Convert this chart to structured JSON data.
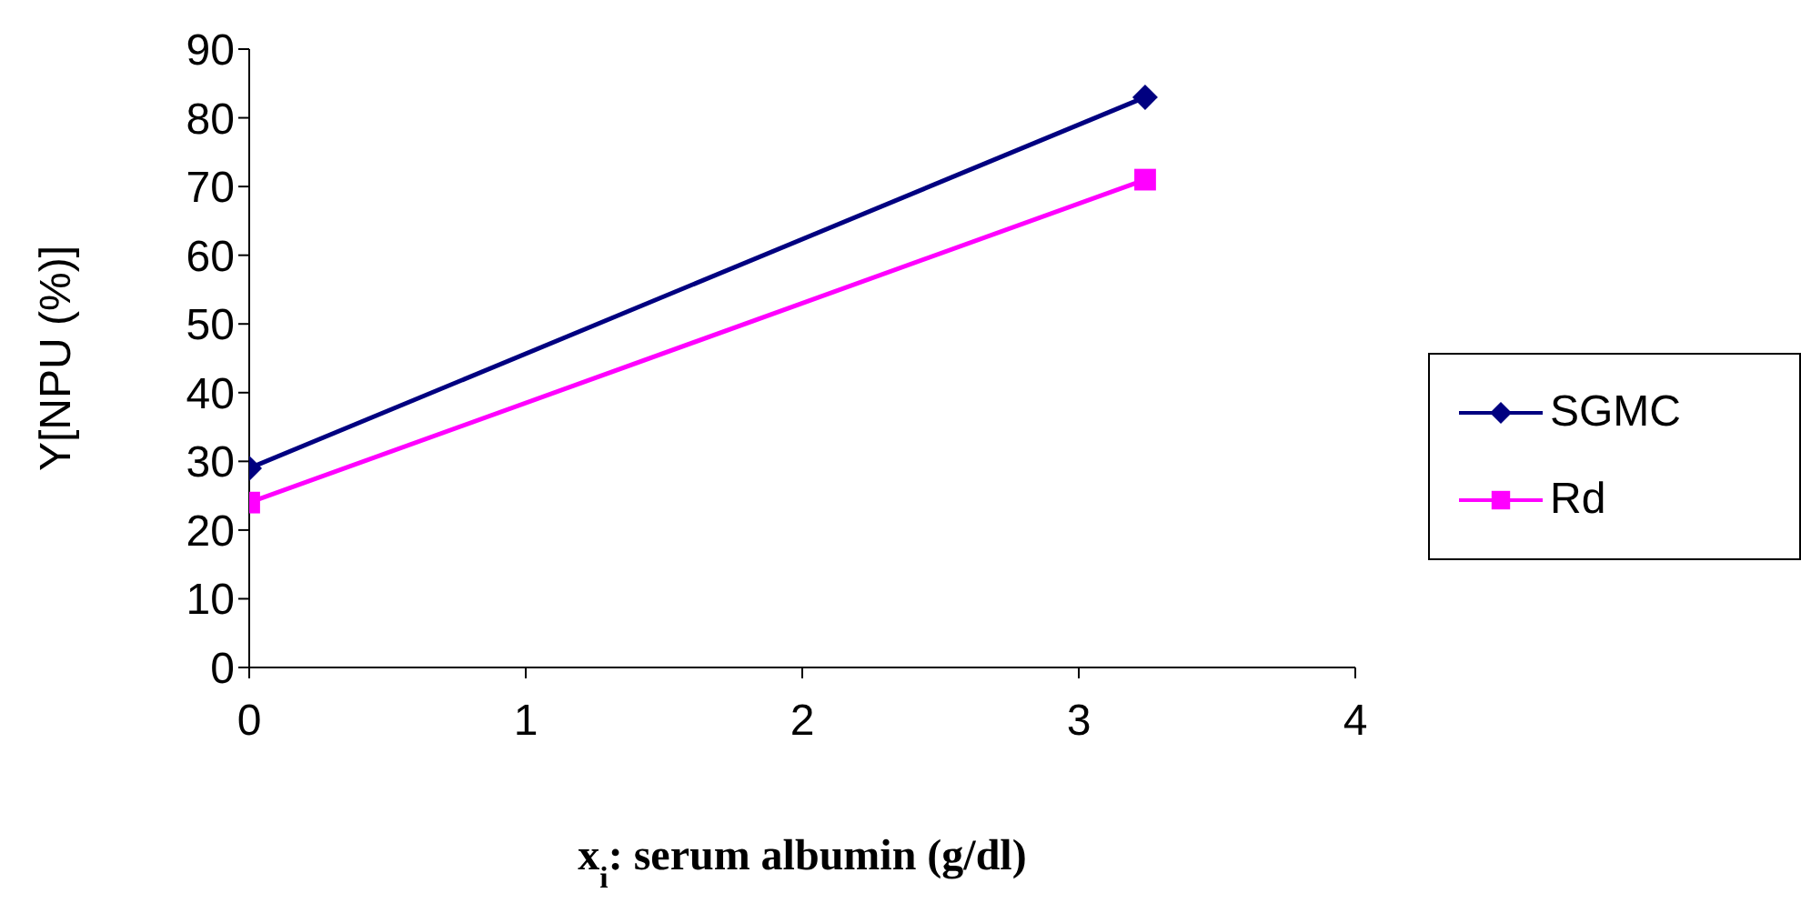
{
  "chart_data": {
    "type": "line",
    "xlabel": "x$_{i}$: serum albumin (g/dl)",
    "ylabel": "Y[NPU (%)]",
    "x": [
      0,
      3.24
    ],
    "xlim": [
      0,
      4
    ],
    "xticks": [
      0,
      1,
      2,
      3,
      4
    ],
    "ylim": [
      0,
      90
    ],
    "yticks": [
      0,
      10,
      20,
      30,
      40,
      50,
      60,
      70,
      80,
      90
    ],
    "grid": false,
    "legend": "right",
    "series": [
      {
        "name": "SGMC",
        "color": "#000080",
        "marker": "diamond",
        "values": [
          29,
          83
        ]
      },
      {
        "name": "Rd",
        "color": "#ff00ff",
        "marker": "square",
        "values": [
          24,
          71
        ]
      }
    ]
  }
}
